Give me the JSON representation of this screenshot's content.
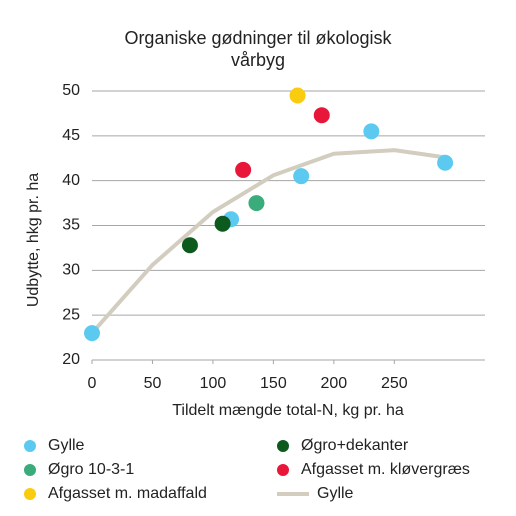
{
  "chart_data": {
    "type": "scatter",
    "title": "Organiske gødninger til økologisk vårbyg",
    "x_label": "Tildelt mængde total-N, kg pr. ha",
    "y_label": "Udbytte, hkg pr. ha",
    "xlim": [
      0,
      325
    ],
    "xticks": [
      0,
      50,
      100,
      150,
      200,
      250
    ],
    "ylim": [
      20,
      50
    ],
    "yticks": [
      20,
      25,
      30,
      35,
      40,
      45,
      50
    ],
    "grid": true,
    "legend": "bottom",
    "series": [
      {
        "name": "Gylle",
        "color": "#5ccaf0",
        "x": [
          0,
          115,
          173,
          231,
          292
        ],
        "values": [
          23.0,
          35.7,
          40.5,
          45.5,
          42.0
        ]
      },
      {
        "name": "Øgro+dekanter",
        "color": "#0d5a1e",
        "x": [
          81,
          108
        ],
        "values": [
          32.8,
          35.2
        ]
      },
      {
        "name": "Øgro 10-3-1",
        "color": "#3aab7b",
        "x": [
          136
        ],
        "values": [
          37.5
        ]
      },
      {
        "name": "Afgasset m. kløvergræs",
        "color": "#e8173a",
        "x": [
          125,
          190
        ],
        "values": [
          41.2,
          47.3
        ]
      },
      {
        "name": "Afgasset m. madaffald",
        "color": "#f9cc10",
        "x": [
          170
        ],
        "values": [
          49.5
        ]
      },
      {
        "name": "Gylle",
        "type": "line",
        "color": "#d3cdbf",
        "x": [
          0,
          50,
          100,
          150,
          200,
          250,
          292
        ],
        "values": [
          23.0,
          30.6,
          36.5,
          40.6,
          43.0,
          43.4,
          42.6
        ]
      }
    ]
  }
}
